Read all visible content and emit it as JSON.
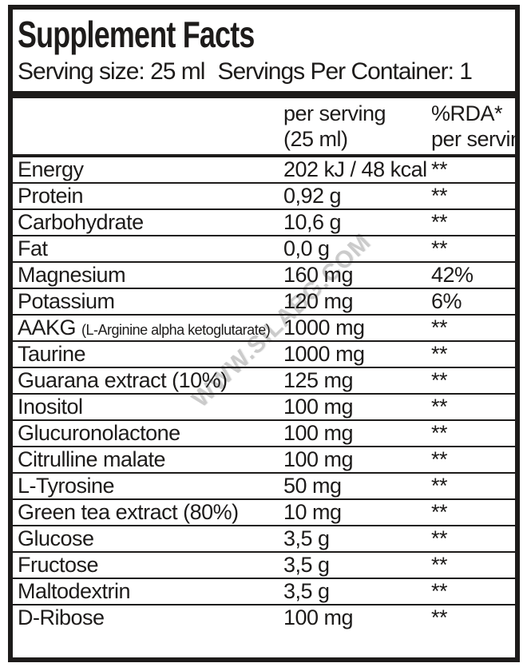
{
  "header": {
    "title": "Supplement Facts",
    "serving_size": "Serving size: 25 ml",
    "servings_per_container": "Servings Per Container: 1"
  },
  "columns": {
    "amount_line1": "per serving",
    "amount_line2": "(25 ml)",
    "rda_line1": "%RDA*",
    "rda_line2": "per serving"
  },
  "watermark": "WWW.SILABG.COM",
  "colors": {
    "ink": "#1d1b1a",
    "watermark": "#c6c6c6"
  },
  "rows": [
    {
      "name": "Energy",
      "note": "",
      "amount": "202 kJ / 48 kcal",
      "rda": "**"
    },
    {
      "name": "Protein",
      "note": "",
      "amount": "0,92 g",
      "rda": "**"
    },
    {
      "name": "Carbohydrate",
      "note": "",
      "amount": "10,6 g",
      "rda": "**"
    },
    {
      "name": "Fat",
      "note": "",
      "amount": "0,0 g",
      "rda": "**"
    },
    {
      "name": "Magnesium",
      "note": "",
      "amount": "160 mg",
      "rda": "42%"
    },
    {
      "name": "Potassium",
      "note": "",
      "amount": "120 mg",
      "rda": "6%"
    },
    {
      "name": "AAKG",
      "note": "(L-Arginine alpha ketoglutarate)",
      "amount": "1000 mg",
      "rda": "**"
    },
    {
      "name": "Taurine",
      "note": "",
      "amount": "1000 mg",
      "rda": "**"
    },
    {
      "name": "Guarana extract (10%)",
      "note": "",
      "amount": "125 mg",
      "rda": "**"
    },
    {
      "name": "Inositol",
      "note": "",
      "amount": "100 mg",
      "rda": "**"
    },
    {
      "name": "Glucuronolactone",
      "note": "",
      "amount": "100 mg",
      "rda": "**"
    },
    {
      "name": "Citrulline malate",
      "note": "",
      "amount": "100 mg",
      "rda": "**"
    },
    {
      "name": "L-Tyrosine",
      "note": "",
      "amount": "50 mg",
      "rda": "**"
    },
    {
      "name": "Green tea extract (80%)",
      "note": "",
      "amount": "10 mg",
      "rda": "**"
    },
    {
      "name": "Glucose",
      "note": "",
      "amount": "3,5 g",
      "rda": "**"
    },
    {
      "name": "Fructose",
      "note": "",
      "amount": "3,5 g",
      "rda": "**"
    },
    {
      "name": "Maltodextrin",
      "note": "",
      "amount": "3,5 g",
      "rda": "**"
    },
    {
      "name": "D-Ribose",
      "note": "",
      "amount": "100 mg",
      "rda": "**"
    }
  ]
}
